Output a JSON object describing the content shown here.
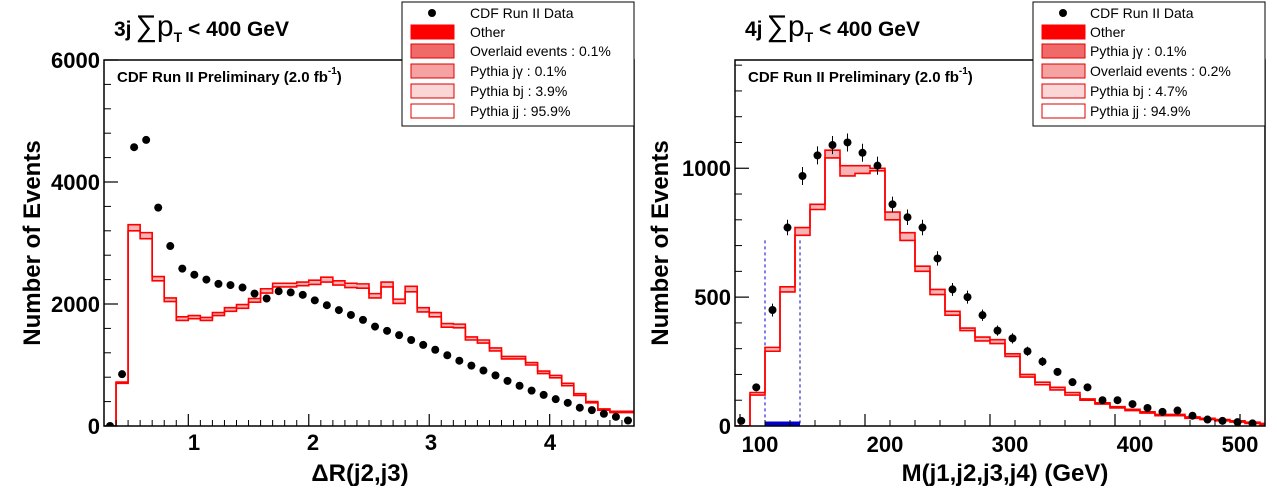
{
  "chart_data": [
    {
      "type": "histogram",
      "title_main": "3j",
      "title_symbol": "∑p",
      "title_sub": "T",
      "title_rest": " < 400 GeV",
      "annotation_main": "CDF Run II Preliminary (2.0 fb",
      "annotation_sup": "-1",
      "annotation_close": ")",
      "xlabel": "ΔR(j2,j3)",
      "ylabel": "Number of Events",
      "xlim": [
        0.3,
        4.7
      ],
      "ylim": [
        0,
        6000
      ],
      "xticks": [
        "1",
        "2",
        "3",
        "4"
      ],
      "yticks": [
        "0",
        "2000",
        "4000",
        "6000"
      ],
      "legend": [
        {
          "label": "CDF Run II Data",
          "style": "marker"
        },
        {
          "label": "Other",
          "style": "fill",
          "color": "#ff0000"
        },
        {
          "label": "Overlaid events : 0.1%",
          "style": "fill",
          "color": "#f06a6a"
        },
        {
          "label": "Pythia jγ : 0.1%",
          "style": "fill",
          "color": "#f7a2a2"
        },
        {
          "label": "Pythia bj : 3.9%",
          "style": "fill",
          "color": "#fbd6d6"
        },
        {
          "label": "Pythia jj : 95.9%",
          "style": "fill",
          "color": "#ffffff"
        }
      ],
      "bin_edges": [
        0.3,
        0.4,
        0.5,
        0.6,
        0.7,
        0.8,
        0.9,
        1.0,
        1.1,
        1.2,
        1.3,
        1.4,
        1.5,
        1.6,
        1.7,
        1.8,
        1.9,
        2.0,
        2.1,
        2.2,
        2.3,
        2.4,
        2.5,
        2.6,
        2.7,
        2.8,
        2.9,
        3.0,
        3.1,
        3.2,
        3.3,
        3.4,
        3.5,
        3.6,
        3.7,
        3.8,
        3.9,
        4.0,
        4.1,
        4.2,
        4.3,
        4.4,
        4.5,
        4.6,
        4.7
      ],
      "mc_jj": [
        0,
        700,
        3200,
        3070,
        2380,
        2040,
        1730,
        1760,
        1730,
        1810,
        1880,
        1930,
        2030,
        2180,
        2280,
        2280,
        2300,
        2320,
        2360,
        2310,
        2270,
        2260,
        2100,
        2280,
        2010,
        2200,
        1870,
        1790,
        1620,
        1610,
        1410,
        1360,
        1230,
        1100,
        1100,
        1000,
        860,
        790,
        660,
        500,
        380,
        260,
        220,
        220
      ],
      "mc_total": [
        0,
        720,
        3300,
        3170,
        2450,
        2100,
        1790,
        1810,
        1780,
        1860,
        1940,
        1990,
        2090,
        2250,
        2340,
        2340,
        2360,
        2390,
        2440,
        2380,
        2340,
        2330,
        2170,
        2360,
        2080,
        2290,
        1940,
        1860,
        1680,
        1670,
        1460,
        1410,
        1280,
        1140,
        1140,
        1040,
        900,
        830,
        700,
        530,
        400,
        280,
        240,
        240
      ],
      "data_x": [
        0.35,
        0.45,
        0.55,
        0.65,
        0.75,
        0.85,
        0.95,
        1.05,
        1.15,
        1.25,
        1.35,
        1.45,
        1.55,
        1.65,
        1.75,
        1.85,
        1.95,
        2.05,
        2.15,
        2.25,
        2.35,
        2.45,
        2.55,
        2.65,
        2.75,
        2.85,
        2.95,
        3.05,
        3.15,
        3.25,
        3.35,
        3.45,
        3.55,
        3.65,
        3.75,
        3.85,
        3.95,
        4.05,
        4.15,
        4.25,
        4.35,
        4.45,
        4.55,
        4.65
      ],
      "data_y": [
        0,
        850,
        4570,
        4690,
        3580,
        2950,
        2580,
        2480,
        2400,
        2330,
        2310,
        2270,
        2170,
        2090,
        2210,
        2190,
        2150,
        2060,
        1980,
        1900,
        1820,
        1740,
        1630,
        1560,
        1490,
        1410,
        1330,
        1250,
        1160,
        1070,
        990,
        910,
        830,
        740,
        660,
        580,
        510,
        440,
        380,
        300,
        260,
        200,
        150,
        90
      ],
      "data_err": []
    },
    {
      "type": "histogram",
      "title_main": "4j",
      "title_symbol": "∑p",
      "title_sub": "T",
      "title_rest": " < 400 GeV",
      "annotation_main": "CDF Run II Preliminary (2.0 fb",
      "annotation_sup": "-1",
      "annotation_close": ")",
      "xlabel": "M(j1,j2,j3,j4) (GeV)",
      "ylabel": "Number of Events",
      "xlim": [
        96,
        520
      ],
      "ylim": [
        0,
        1420
      ],
      "xticks": [
        "100",
        "200",
        "300",
        "400",
        "500"
      ],
      "yticks": [
        "0",
        "500",
        "1000"
      ],
      "legend": [
        {
          "label": "CDF Run II Data",
          "style": "marker"
        },
        {
          "label": "Other",
          "style": "fill",
          "color": "#ff0000"
        },
        {
          "label": "Pythia jγ : 0.1%",
          "style": "fill",
          "color": "#f06a6a"
        },
        {
          "label": "Overlaid events : 0.2%",
          "style": "fill",
          "color": "#f7a2a2"
        },
        {
          "label": "Pythia bj : 4.7%",
          "style": "fill",
          "color": "#fbd6d6"
        },
        {
          "label": "Pythia jj : 94.9%",
          "style": "fill",
          "color": "#ffffff"
        }
      ],
      "bin_edges": [
        96,
        108,
        120,
        132,
        144,
        156,
        168,
        180,
        192,
        204,
        216,
        228,
        240,
        252,
        264,
        276,
        288,
        300,
        312,
        324,
        336,
        348,
        360,
        372,
        384,
        396,
        408,
        420,
        432,
        444,
        456,
        468,
        480,
        492,
        504,
        516,
        520
      ],
      "mc_jj": [
        0,
        120,
        290,
        520,
        740,
        840,
        1040,
        970,
        980,
        990,
        800,
        720,
        600,
        510,
        430,
        370,
        330,
        320,
        270,
        190,
        160,
        140,
        120,
        100,
        85,
        70,
        60,
        50,
        40,
        40,
        30,
        25,
        20,
        15,
        10,
        5
      ],
      "mc_total": [
        0,
        130,
        305,
        540,
        770,
        860,
        1070,
        1010,
        1010,
        1000,
        830,
        750,
        620,
        530,
        445,
        380,
        345,
        335,
        280,
        200,
        170,
        150,
        130,
        105,
        90,
        75,
        65,
        55,
        45,
        45,
        35,
        30,
        25,
        20,
        15,
        10
      ],
      "data_x": [
        101,
        113,
        126,
        138,
        150,
        162,
        174,
        186,
        198,
        210,
        222,
        234,
        246,
        258,
        270,
        282,
        294,
        306,
        318,
        330,
        342,
        354,
        366,
        378,
        390,
        402,
        414,
        426,
        438,
        450,
        462,
        474,
        486,
        498,
        510
      ],
      "data_y": [
        20,
        150,
        450,
        770,
        970,
        1050,
        1090,
        1100,
        1060,
        1010,
        860,
        810,
        770,
        650,
        530,
        500,
        430,
        370,
        340,
        290,
        250,
        210,
        170,
        150,
        100,
        100,
        85,
        70,
        55,
        60,
        40,
        25,
        20,
        15,
        10
      ],
      "data_err": [
        10,
        15,
        25,
        30,
        35,
        35,
        35,
        35,
        35,
        35,
        30,
        30,
        30,
        28,
        25,
        25,
        22,
        20,
        20,
        18,
        17,
        15,
        14,
        13,
        12,
        11,
        10,
        9,
        8,
        8,
        7,
        6,
        5,
        5,
        4
      ],
      "blue_band": [
        120,
        148
      ]
    }
  ]
}
